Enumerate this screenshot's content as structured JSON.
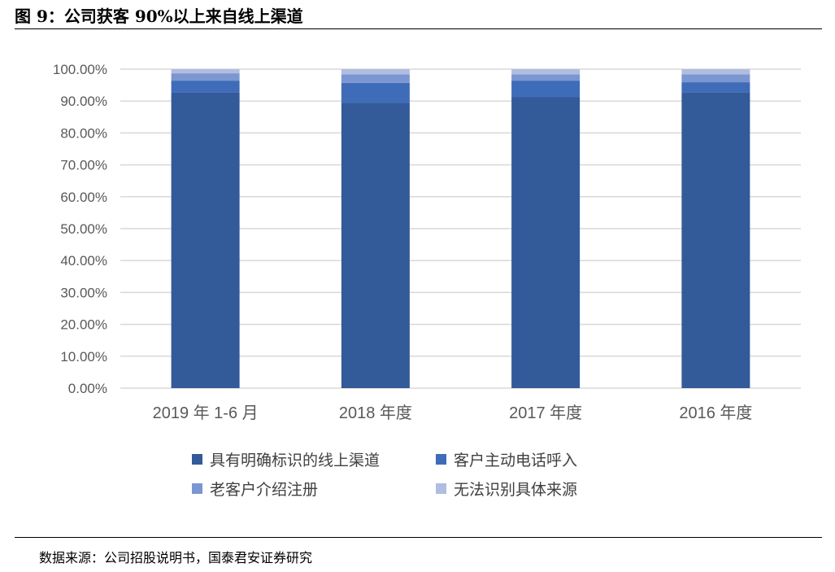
{
  "title": "图 9：公司获客 90%以上来自线上渠道",
  "source": "数据来源：公司招股说明书，国泰君安证券研究",
  "chart_data": {
    "type": "bar",
    "stacked": true,
    "categories": [
      "2019 年 1-6 月",
      "2018 年度",
      "2017 年度",
      "2016 年度"
    ],
    "series": [
      {
        "name": "具有明确标识的线上渠道",
        "color": "#335A99",
        "values": [
          92.7,
          89.4,
          91.2,
          92.7
        ]
      },
      {
        "name": "客户主动电话呼入",
        "color": "#3F6CB8",
        "values": [
          3.7,
          6.3,
          5.2,
          3.2
        ]
      },
      {
        "name": "老客户介绍注册",
        "color": "#7B96D0",
        "values": [
          2.3,
          2.7,
          2.0,
          2.5
        ]
      },
      {
        "name": "无法识别具体来源",
        "color": "#B1BDE0",
        "values": [
          1.3,
          1.6,
          1.6,
          1.6
        ]
      }
    ],
    "ylim": [
      0,
      100
    ],
    "yticks": [
      "0.00%",
      "10.00%",
      "20.00%",
      "30.00%",
      "40.00%",
      "50.00%",
      "60.00%",
      "70.00%",
      "80.00%",
      "90.00%",
      "100.00%"
    ],
    "grid": true,
    "legend": "bottom"
  }
}
